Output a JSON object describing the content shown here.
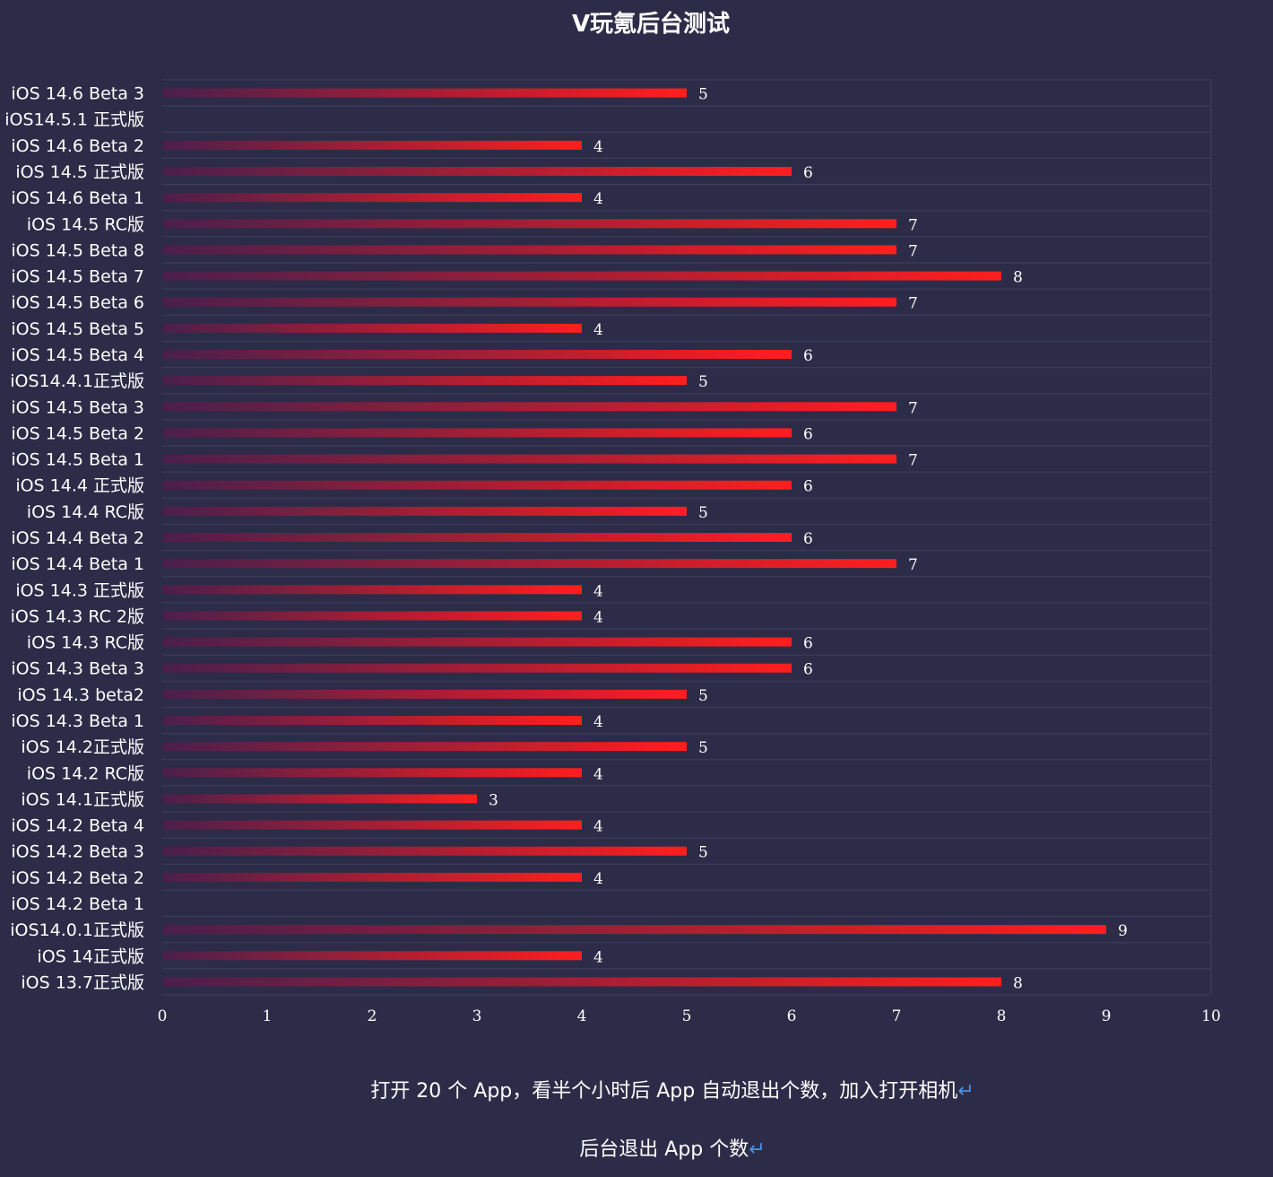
{
  "chart_data": {
    "type": "bar",
    "orientation": "horizontal",
    "title": "V玩氪后台测试",
    "xlabel": "",
    "ylabel": "",
    "xlim": [
      0,
      10
    ],
    "xticks": [
      0,
      1,
      2,
      3,
      4,
      5,
      6,
      7,
      8,
      9,
      10
    ],
    "grid": true,
    "legend": "none",
    "categories": [
      "iOS 14.6 Beta 3",
      "iOS14.5.1 正式版",
      "iOS 14.6 Beta 2",
      "iOS 14.5 正式版",
      "iOS 14.6 Beta 1",
      "iOS 14.5 RC版",
      "iOS 14.5 Beta 8",
      "iOS 14.5 Beta 7",
      "iOS 14.5 Beta 6",
      "iOS 14.5 Beta 5",
      "iOS 14.5 Beta 4",
      "iOS14.4.1正式版",
      "iOS 14.5 Beta 3",
      "iOS 14.5 Beta 2",
      "iOS 14.5 Beta 1",
      "iOS 14.4 正式版",
      "iOS 14.4 RC版",
      "iOS 14.4 Beta 2",
      "iOS 14.4 Beta 1",
      "iOS 14.3 正式版",
      "iOS 14.3 RC 2版",
      "iOS 14.3 RC版",
      "iOS 14.3 Beta 3",
      "iOS 14.3 beta2",
      "iOS 14.3 Beta 1",
      "iOS 14.2正式版",
      "iOS 14.2 RC版",
      "iOS 14.1正式版",
      "iOS 14.2 Beta 4",
      "iOS 14.2 Beta 3",
      "iOS 14.2 Beta 2",
      "iOS 14.2 Beta 1",
      "iOS14.0.1正式版",
      "iOS 14正式版",
      "iOS 13.7正式版"
    ],
    "values": [
      5,
      null,
      4,
      6,
      4,
      7,
      7,
      8,
      7,
      4,
      6,
      5,
      7,
      6,
      7,
      6,
      5,
      6,
      7,
      4,
      4,
      6,
      6,
      5,
      4,
      5,
      4,
      3,
      4,
      5,
      4,
      null,
      9,
      4,
      8
    ],
    "colors": {
      "background": "#2d2c48",
      "bar_start": "#4a1f4c",
      "bar_end": "#ff1e1e",
      "grid": "#3f3e5e",
      "text": "#ffffff"
    }
  },
  "captions": {
    "line1": "打开 20 个 App，看半个小时后 App 自动退出个数，加入打开相机",
    "line2": "后台退出 App 个数",
    "return_mark": "↵"
  }
}
